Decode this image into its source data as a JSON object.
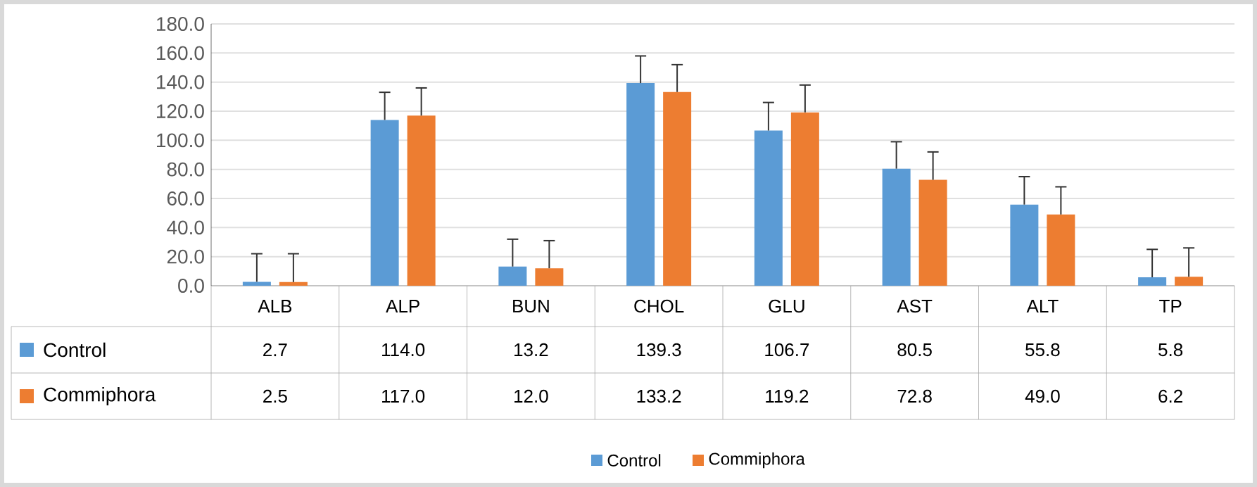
{
  "chart_data": {
    "type": "bar",
    "categories": [
      "ALB",
      "ALP",
      "BUN",
      "CHOL",
      "GLU",
      "AST",
      "ALT",
      "TP"
    ],
    "series": [
      {
        "name": "Control",
        "color": "#5b9bd5",
        "values": [
          2.7,
          114.0,
          13.2,
          139.3,
          106.7,
          80.5,
          55.8,
          5.8
        ],
        "value_labels": [
          "2.7",
          "114.0",
          "13.2",
          "139.3",
          "106.7",
          "80.5",
          "55.8",
          "5.8"
        ],
        "errors": [
          [
            2.7,
            22
          ],
          [
            114.0,
            133
          ],
          [
            13.2,
            32
          ],
          [
            139.3,
            158
          ],
          [
            106.7,
            126
          ],
          [
            80.5,
            99
          ],
          [
            55.8,
            75
          ],
          [
            5.8,
            25
          ]
        ]
      },
      {
        "name": "Commiphora",
        "color": "#ed7d31",
        "values": [
          2.5,
          117.0,
          12.0,
          133.2,
          119.2,
          72.8,
          49.0,
          6.2
        ],
        "value_labels": [
          "2.5",
          "117.0",
          "12.0",
          "133.2",
          "119.2",
          "72.8",
          "49.0",
          "6.2"
        ],
        "errors": [
          [
            2.5,
            22
          ],
          [
            117.0,
            136
          ],
          [
            12.0,
            31
          ],
          [
            133.2,
            152
          ],
          [
            119.2,
            138
          ],
          [
            72.8,
            92
          ],
          [
            49.0,
            68
          ],
          [
            6.2,
            26
          ]
        ]
      }
    ],
    "ylim": [
      0,
      180
    ],
    "yticks": [
      {
        "value": 0,
        "label": "0.0"
      },
      {
        "value": 20,
        "label": "20.0"
      },
      {
        "value": 40,
        "label": "40.0"
      },
      {
        "value": 60,
        "label": "60.0"
      },
      {
        "value": 80,
        "label": "80.0"
      },
      {
        "value": 100,
        "label": "100.0"
      },
      {
        "value": 120,
        "label": "120.0"
      },
      {
        "value": 140,
        "label": "140.0"
      },
      {
        "value": 160,
        "label": "160.0"
      },
      {
        "value": 180,
        "label": "180.0"
      }
    ],
    "grid": "y",
    "legend": "bottom"
  }
}
